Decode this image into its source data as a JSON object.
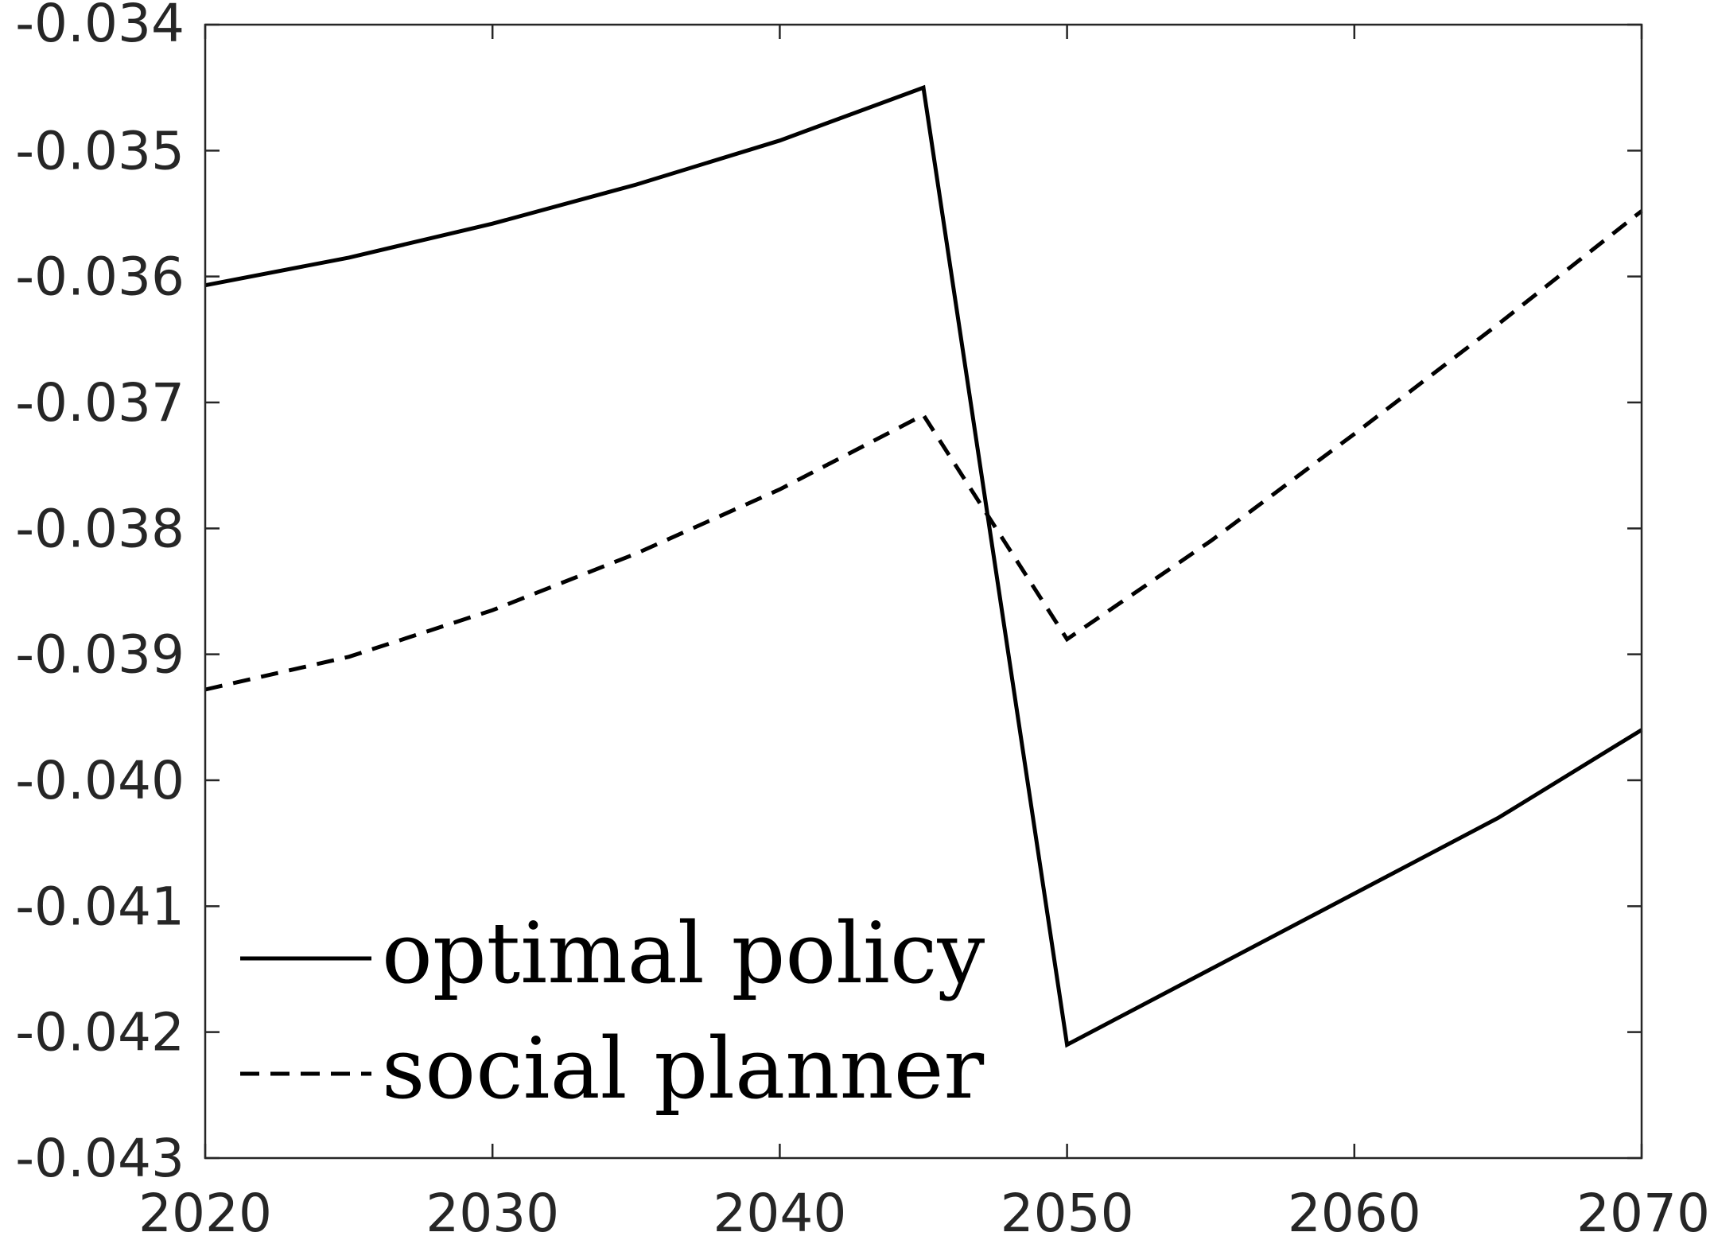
{
  "chart_data": {
    "type": "line",
    "title": "",
    "xlabel": "",
    "ylabel": "",
    "xlim": [
      2020,
      2070
    ],
    "ylim": [
      -0.043,
      -0.034
    ],
    "x_ticks": [
      2020,
      2030,
      2040,
      2050,
      2060,
      2070
    ],
    "x_tick_labels": [
      "2020",
      "2030",
      "2040",
      "2050",
      "2060",
      "2070"
    ],
    "y_ticks": [
      -0.043,
      -0.042,
      -0.041,
      -0.04,
      -0.039,
      -0.038,
      -0.037,
      -0.036,
      -0.035,
      -0.034
    ],
    "y_tick_labels": [
      "-0.043",
      "-0.042",
      "-0.041",
      "-0.040",
      "-0.039",
      "-0.038",
      "-0.037",
      "-0.036",
      "-0.035",
      "-0.034"
    ],
    "grid": false,
    "legend_position": "bottom-left",
    "series": [
      {
        "name": "optimal policy",
        "style": "solid",
        "color": "#000000",
        "x": [
          2020,
          2025,
          2030,
          2035,
          2040,
          2045,
          2050,
          2055,
          2060,
          2065,
          2070
        ],
        "y": [
          -0.03607,
          -0.03585,
          -0.03558,
          -0.03527,
          -0.03492,
          -0.0345,
          -0.0421,
          -0.0415,
          -0.0409,
          -0.0403,
          -0.0396
        ]
      },
      {
        "name": "social planner",
        "style": "dashed",
        "color": "#000000",
        "x": [
          2020,
          2025,
          2030,
          2035,
          2040,
          2045,
          2050,
          2055,
          2060,
          2065,
          2070
        ],
        "y": [
          -0.03928,
          -0.03902,
          -0.03865,
          -0.0382,
          -0.03769,
          -0.0371,
          -0.03888,
          -0.0381,
          -0.03725,
          -0.03638,
          -0.03548
        ]
      }
    ]
  }
}
